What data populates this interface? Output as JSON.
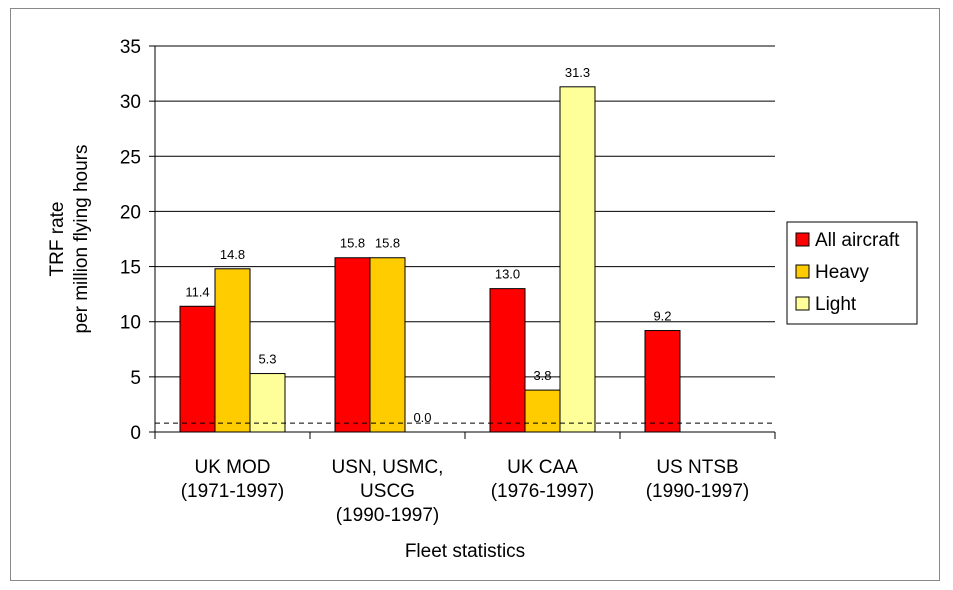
{
  "chart_data": {
    "type": "bar",
    "ylabel_line1": "TRF rate",
    "ylabel_line2": "per million flying hours",
    "xlabel": "Fleet statistics",
    "ylim": [
      0,
      35
    ],
    "yticks": [
      0,
      5,
      10,
      15,
      20,
      25,
      30,
      35
    ],
    "grid": true,
    "legend_position": "right",
    "reference_line": 0.8,
    "categories": [
      [
        "UK MOD",
        "(1971-1997)"
      ],
      [
        "USN, USMC,",
        "USCG",
        "(1990-1997)"
      ],
      [
        "UK CAA",
        "(1976-1997)"
      ],
      [
        "US NTSB",
        "(1990-1997)"
      ]
    ],
    "series": [
      {
        "name": "All aircraft",
        "color": "#ff0000",
        "values": [
          11.4,
          15.8,
          13.0,
          9.2
        ],
        "labels": [
          "11.4",
          "15.8",
          "13.0",
          "9.2"
        ]
      },
      {
        "name": "Heavy",
        "color": "#ffcc00",
        "values": [
          14.8,
          15.8,
          3.8,
          null
        ],
        "labels": [
          "14.8",
          "15.8",
          "3.8",
          null
        ]
      },
      {
        "name": "Light",
        "color": "#ffff99",
        "values": [
          5.3,
          0.0,
          31.3,
          null
        ],
        "labels": [
          "5.3",
          "0.0",
          "31.3",
          null
        ]
      }
    ]
  }
}
